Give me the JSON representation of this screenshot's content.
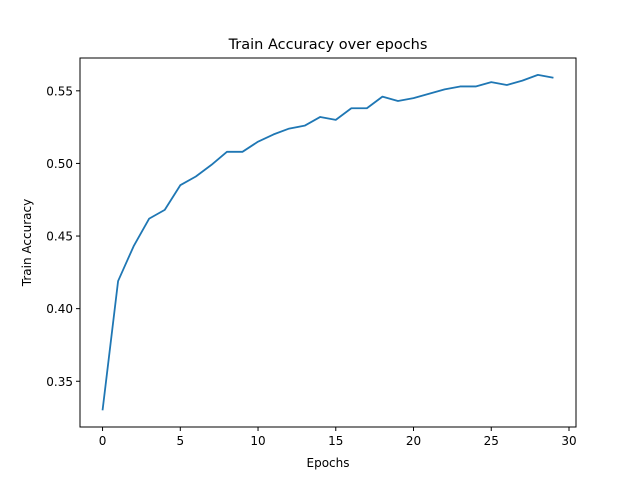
{
  "chart_data": {
    "type": "line",
    "title": "Train Accuracy over epochs",
    "xlabel": "Epochs",
    "ylabel": "Train Accuracy",
    "xlim": [
      -1.45,
      30.45
    ],
    "ylim": [
      0.3185,
      0.5726
    ],
    "x_ticks": [
      0,
      5,
      10,
      15,
      20,
      25,
      30
    ],
    "y_ticks": [
      0.35,
      0.4,
      0.45,
      0.5,
      0.55
    ],
    "y_tick_labels": [
      "0.35",
      "0.40",
      "0.45",
      "0.50",
      "0.55"
    ],
    "grid": false,
    "series": [
      {
        "color": "#1f77b4",
        "x": [
          0,
          1,
          2,
          3,
          4,
          5,
          6,
          7,
          8,
          9,
          10,
          11,
          12,
          13,
          14,
          15,
          16,
          17,
          18,
          19,
          20,
          21,
          22,
          23,
          24,
          25,
          26,
          27,
          28,
          29
        ],
        "values": [
          0.33,
          0.419,
          0.443,
          0.462,
          0.468,
          0.485,
          0.491,
          0.499,
          0.508,
          0.508,
          0.515,
          0.52,
          0.524,
          0.526,
          0.532,
          0.53,
          0.538,
          0.538,
          0.546,
          0.543,
          0.545,
          0.548,
          0.551,
          0.553,
          0.553,
          0.556,
          0.554,
          0.557,
          0.561,
          0.559
        ]
      }
    ]
  }
}
